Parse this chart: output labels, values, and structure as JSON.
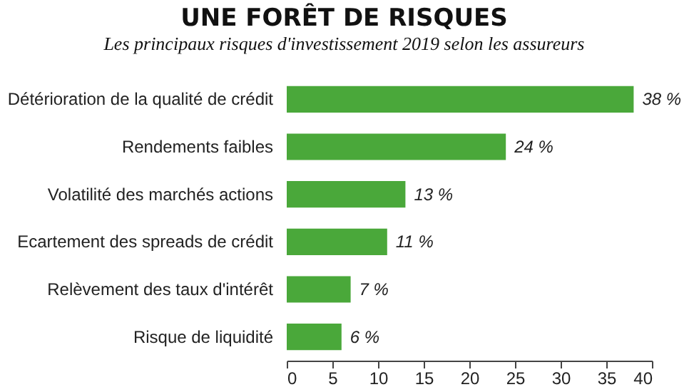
{
  "chart_data": {
    "type": "bar",
    "orientation": "horizontal",
    "title": "UNE FORÊT DE RISQUES",
    "subtitle": "Les principaux risques d'investissement 2019 selon les assureurs",
    "categories": [
      "Détérioration de la qualité de crédit",
      "Rendements faibles",
      "Volatilité des marchés actions",
      "Ecartement des spreads de crédit",
      "Relèvement des taux d'intérêt",
      "Risque de liquidité"
    ],
    "values": [
      38,
      24,
      13,
      11,
      7,
      6
    ],
    "value_labels": [
      "38 %",
      "24 %",
      "13 %",
      "11 %",
      "7 %",
      "6 %"
    ],
    "color": "#4aa83a",
    "xlim": [
      0,
      40
    ],
    "xticks": [
      0,
      5,
      10,
      15,
      20,
      25,
      30,
      35,
      40
    ],
    "grid": false
  }
}
